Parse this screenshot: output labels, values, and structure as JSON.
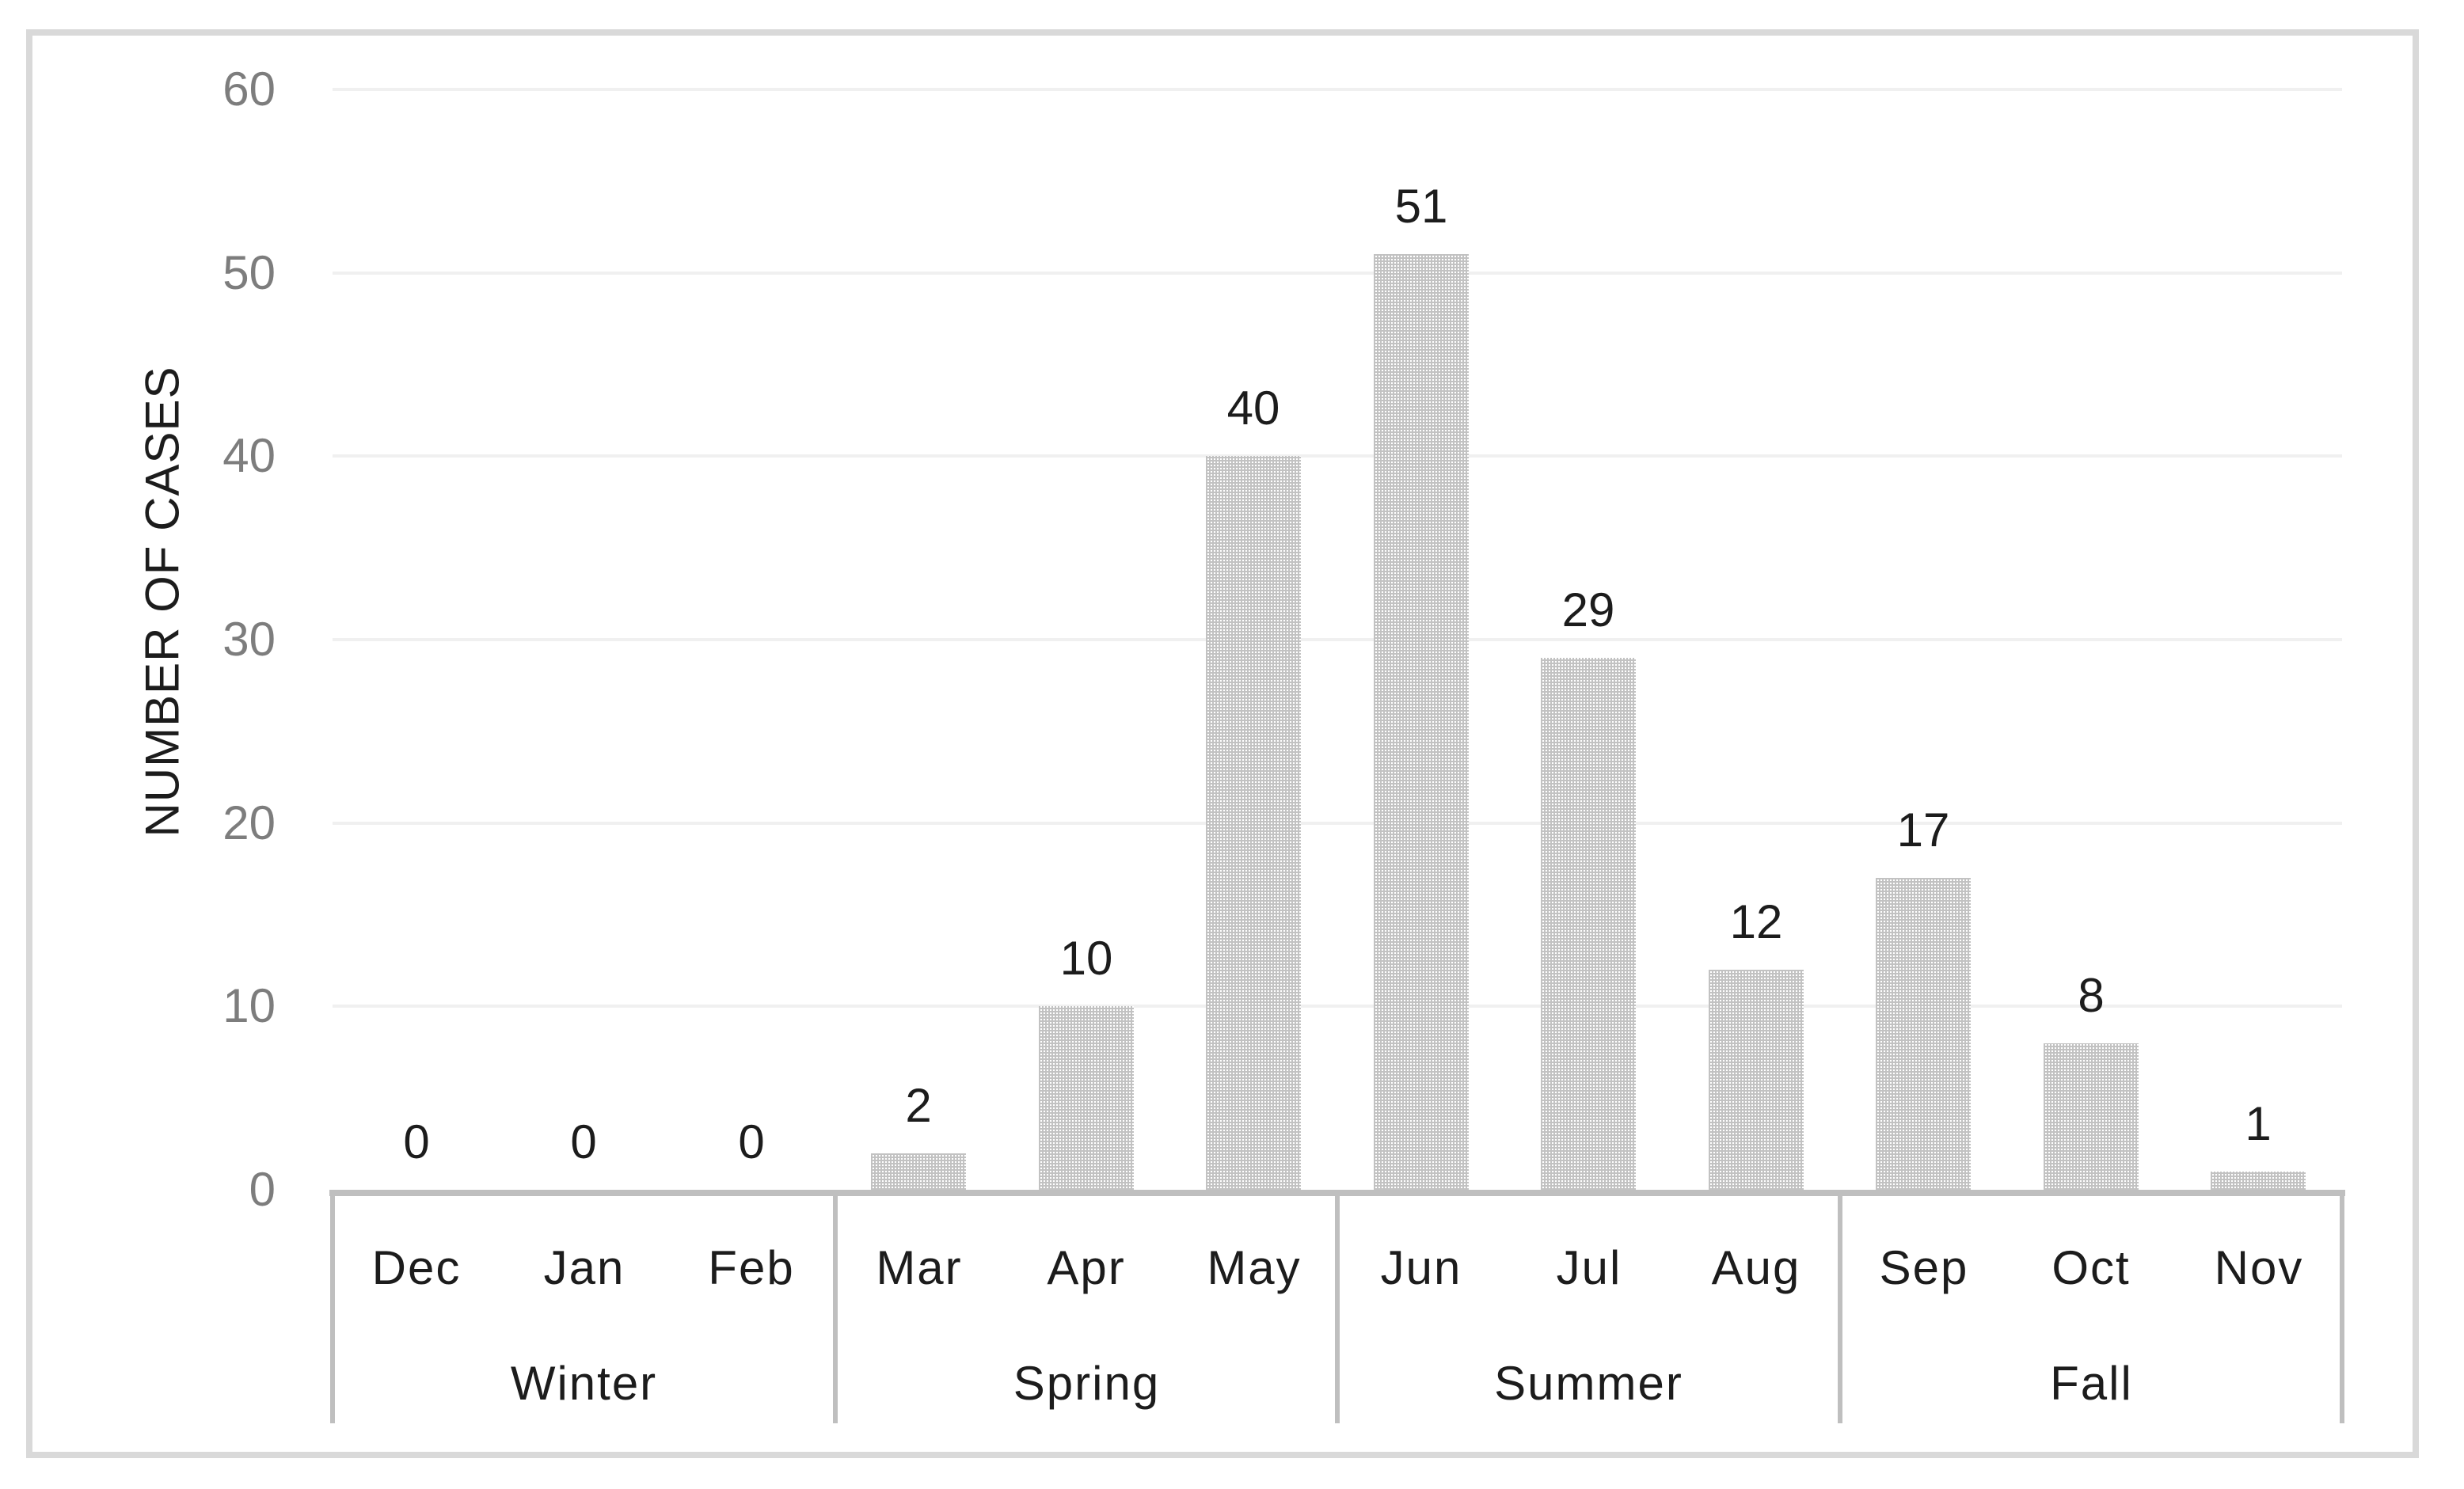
{
  "figure": {
    "kind": "embedded chart image with light gray frame",
    "background": "#ffffff"
  },
  "chart_data": {
    "type": "bar",
    "title": "",
    "xlabel": "",
    "ylabel": "NUMBER OF CASES",
    "categories": [
      "Dec",
      "Jan",
      "Feb",
      "Mar",
      "Apr",
      "May",
      "Jun",
      "Jul",
      "Aug",
      "Sep",
      "Oct",
      "Nov"
    ],
    "values": [
      0,
      0,
      0,
      2,
      10,
      40,
      51,
      29,
      12,
      17,
      8,
      1
    ],
    "data_labels_shown": true,
    "season_groups": [
      {
        "label": "Winter",
        "span": 3
      },
      {
        "label": "Spring",
        "span": 3
      },
      {
        "label": "Summer",
        "span": 3
      },
      {
        "label": "Fall",
        "span": 3
      }
    ],
    "yticks": [
      0,
      10,
      20,
      30,
      40,
      50,
      60
    ],
    "ylim": [
      0,
      60
    ],
    "grid": true,
    "legend": "none",
    "bar_style": "patterned gray (dotted grid fill)",
    "colors": {
      "frame_border": "#d9d9d9",
      "axis_line": "#bfbfbf",
      "gridline": "#f0f0f0",
      "tick_label": "#7d7d7d",
      "text": "#1c1c1c",
      "bar_pattern_gray": "#c2c2c2",
      "bar_pattern_base": "#ffffff"
    }
  }
}
